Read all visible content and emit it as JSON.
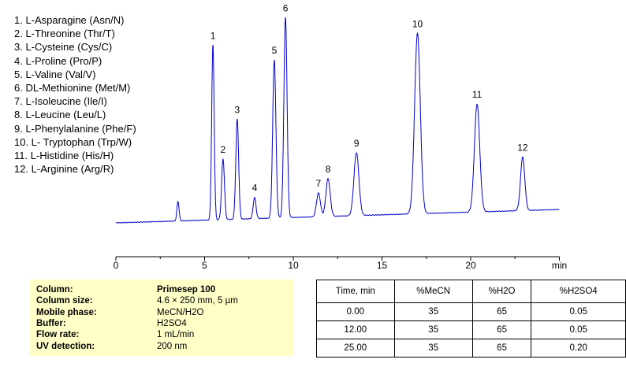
{
  "chart_data": {
    "type": "line",
    "xlabel": "min",
    "xlim": [
      0,
      25
    ],
    "x_ticks": [
      0,
      5,
      10,
      15,
      20
    ],
    "grid": false,
    "line_color": "#0000cc",
    "baseline_drift": [
      0,
      17
    ],
    "peaks": [
      {
        "label": "",
        "t": 3.5,
        "h": 25,
        "w": 0.06
      },
      {
        "label": "1",
        "t": 5.47,
        "h": 222,
        "w": 0.07
      },
      {
        "label": "2",
        "t": 6.04,
        "h": 77,
        "w": 0.08
      },
      {
        "label": "3",
        "t": 6.84,
        "h": 127,
        "w": 0.08
      },
      {
        "label": "4",
        "t": 7.82,
        "h": 27,
        "w": 0.08
      },
      {
        "label": "5",
        "t": 8.93,
        "h": 201,
        "w": 0.09
      },
      {
        "label": "6",
        "t": 9.56,
        "h": 254,
        "w": 0.09
      },
      {
        "label": "7",
        "t": 11.42,
        "h": 30,
        "w": 0.11
      },
      {
        "label": "8",
        "t": 11.96,
        "h": 48,
        "w": 0.12
      },
      {
        "label": "9",
        "t": 13.56,
        "h": 80,
        "w": 0.14
      },
      {
        "label": "10",
        "t": 17.0,
        "h": 229,
        "w": 0.16
      },
      {
        "label": "11",
        "t": 20.36,
        "h": 137,
        "w": 0.15
      },
      {
        "label": "12",
        "t": 22.93,
        "h": 68,
        "w": 0.12
      }
    ],
    "legend": [
      "1.  L-Asparagine (Asn/N)",
      "2.  L-Threonine (Thr/T)",
      "3.  L-Cysteine (Cys/C)",
      "4.  L-Proline (Pro/P)",
      "5.  L-Valine (Val/V)",
      "6.  DL-Methionine (Met/M)",
      "7.  L-Isoleucine (Ile/I)",
      "8.  L-Leucine (Leu/L)",
      "9.  L-Phenylalanine (Phe/F)",
      "10. L- Tryptophan (Trp/W)",
      "11. L-Histidine (His/H)",
      "12. L-Arginine (Arg/R)"
    ]
  },
  "conditions": [
    {
      "k": "Column:",
      "v": "Primesep 100",
      "bold": true
    },
    {
      "k": "Column size:",
      "v": "4.6 × 250 mm, 5 µm"
    },
    {
      "k": "Mobile phase:",
      "v": "MeCN/H2O"
    },
    {
      "k": "Buffer:",
      "v": "H2SO4"
    },
    {
      "k": "Flow rate:",
      "v": "1 mL/min"
    },
    {
      "k": "UV detection:",
      "v": "200 nm"
    }
  ],
  "gradient": {
    "headers": [
      "Time, min",
      "%MeCN",
      "%H2O",
      "%H2SO4"
    ],
    "rows": [
      [
        "0.00",
        "35",
        "65",
        "0.05"
      ],
      [
        "12.00",
        "35",
        "65",
        "0.05"
      ],
      [
        "25.00",
        "35",
        "65",
        "0.20"
      ]
    ]
  }
}
